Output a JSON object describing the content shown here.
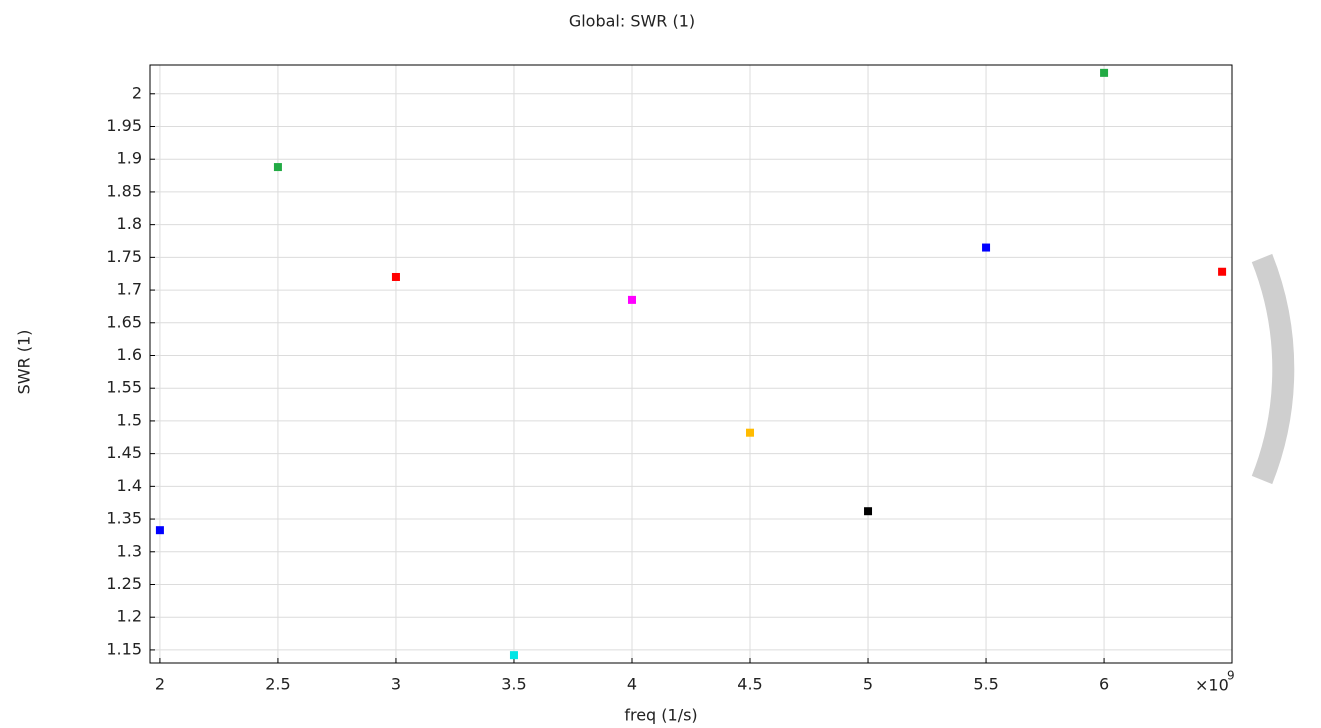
{
  "chart_data": {
    "type": "scatter",
    "title": "Global: SWR (1)",
    "xlabel": "freq (1/s)",
    "ylabel": "SWR (1)",
    "x_scale_label": {
      "base": "×10",
      "exponent": "9"
    },
    "x": [
      2,
      2.5,
      3,
      3.5,
      4,
      4.5,
      5,
      5.5,
      6,
      6.5
    ],
    "values": [
      1.333,
      1.888,
      1.72,
      1.142,
      1.685,
      1.482,
      1.362,
      1.765,
      2.032,
      1.728
    ],
    "colors": [
      "#0000ff",
      "#22aa44",
      "#ff0000",
      "#00e5e5",
      "#ff00ff",
      "#ffbb00",
      "#000000",
      "#0000ff",
      "#22aa44",
      "#ff0000"
    ],
    "xlim": [
      1.958,
      6.542
    ],
    "ylim": [
      1.13,
      2.044
    ],
    "xticks": [
      2,
      2.5,
      3,
      3.5,
      4,
      4.5,
      5,
      5.5,
      6
    ],
    "yticks": [
      1.15,
      1.2,
      1.25,
      1.3,
      1.35,
      1.4,
      1.45,
      1.5,
      1.55,
      1.6,
      1.65,
      1.7,
      1.75,
      1.8,
      1.85,
      1.9,
      1.95,
      2
    ],
    "grid": true
  }
}
